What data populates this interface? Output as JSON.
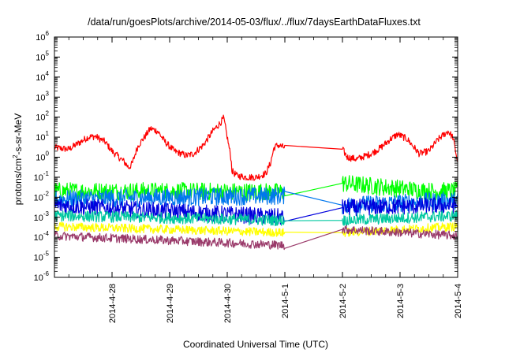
{
  "chart_data": {
    "type": "line",
    "title": "/data/run/goesPlots/archive/2014-05-03/flux/../flux/7daysEarthDataFluxes.txt",
    "xlabel": "Coordinated Universal Time (UTC)",
    "ylabel": "protons/cm2-s-sr-MeV",
    "ylabel_parts": {
      "pre": "protons/cm",
      "sup": "2",
      "post": "-s-sr-MeV"
    },
    "yscale": "log",
    "ylim": [
      1e-06,
      1000000.0
    ],
    "y_ticks": [
      {
        "base": "10",
        "exp": "-6",
        "value": 1e-06
      },
      {
        "base": "10",
        "exp": "-5",
        "value": 1e-05
      },
      {
        "base": "10",
        "exp": "-4",
        "value": 0.0001
      },
      {
        "base": "10",
        "exp": "-3",
        "value": 0.001
      },
      {
        "base": "10",
        "exp": "-2",
        "value": 0.01
      },
      {
        "base": "10",
        "exp": "-1",
        "value": 0.1
      },
      {
        "base": "10",
        "exp": "0",
        "value": 1
      },
      {
        "base": "10",
        "exp": "1",
        "value": 10
      },
      {
        "base": "10",
        "exp": "2",
        "value": 100
      },
      {
        "base": "10",
        "exp": "3",
        "value": 1000
      },
      {
        "base": "10",
        "exp": "4",
        "value": 10000
      },
      {
        "base": "10",
        "exp": "5",
        "value": 100000
      },
      {
        "base": "10",
        "exp": "6",
        "value": 1000000
      }
    ],
    "x_start": "2014-04-27 00:00",
    "xlim": [
      "2014-04-27 00:00",
      "2014-05-04 00:00"
    ],
    "x_ticks": [
      "2014-4-28",
      "2014-4-29",
      "2014-4-30",
      "2014-5-1",
      "2014-5-2",
      "2014-5-3",
      "2014-5-4"
    ],
    "data_gap": [
      "2014-05-01 00:00",
      "2014-05-02 00:00"
    ],
    "grid": false,
    "legend": "none",
    "series": [
      {
        "color": "#ff0000",
        "noise": 0.17,
        "points": [
          [
            "2014-04-27 00:00",
            3
          ],
          [
            "2014-04-27 06:00",
            2.5
          ],
          [
            "2014-04-27 10:00",
            5
          ],
          [
            "2014-04-27 14:00",
            10
          ],
          [
            "2014-04-27 17:00",
            11
          ],
          [
            "2014-04-27 21:00",
            6
          ],
          [
            "2014-04-28 00:00",
            2
          ],
          [
            "2014-04-28 05:00",
            0.6
          ],
          [
            "2014-04-28 07:00",
            0.3
          ],
          [
            "2014-04-28 08:30",
            0.5
          ],
          [
            "2014-04-28 10:00",
            2
          ],
          [
            "2014-04-28 11:00",
            4
          ],
          [
            "2014-04-28 14:00",
            12
          ],
          [
            "2014-04-28 16:00",
            27
          ],
          [
            "2014-04-28 19:00",
            20
          ],
          [
            "2014-04-28 22:00",
            6
          ],
          [
            "2014-04-29 02:00",
            2
          ],
          [
            "2014-04-29 07:00",
            1.2
          ],
          [
            "2014-04-29 10:00",
            1.5
          ],
          [
            "2014-04-29 14:00",
            4
          ],
          [
            "2014-04-29 18:00",
            20
          ],
          [
            "2014-04-29 21:00",
            50
          ],
          [
            "2014-04-29 22:30",
            90
          ],
          [
            "2014-04-30 00:00",
            10
          ],
          [
            "2014-04-30 01:30",
            1
          ],
          [
            "2014-04-30 02:00",
            0.2
          ],
          [
            "2014-04-30 04:00",
            0.12
          ],
          [
            "2014-04-30 08:00",
            0.1
          ],
          [
            "2014-04-30 12:00",
            0.1
          ],
          [
            "2014-04-30 16:00",
            0.15
          ],
          [
            "2014-04-30 18:00",
            0.5
          ],
          [
            "2014-04-30 19:30",
            3
          ],
          [
            "2014-04-30 21:00",
            4
          ],
          [
            "2014-04-30 23:59",
            3
          ],
          [
            "2014-05-02 00:00",
            2.5
          ],
          [
            "2014-05-02 02:00",
            1
          ],
          [
            "2014-05-02 06:00",
            0.8
          ],
          [
            "2014-05-02 12:00",
            1.5
          ],
          [
            "2014-05-02 16:00",
            3
          ],
          [
            "2014-05-02 20:00",
            8
          ],
          [
            "2014-05-02 23:00",
            14
          ],
          [
            "2014-05-03 03:00",
            8
          ],
          [
            "2014-05-03 08:00",
            1.5
          ],
          [
            "2014-05-03 12:00",
            2
          ],
          [
            "2014-05-03 16:00",
            8
          ],
          [
            "2014-05-03 20:00",
            20
          ],
          [
            "2014-05-03 22:00",
            10
          ],
          [
            "2014-05-04 00:00",
            0.6
          ]
        ]
      },
      {
        "color": "#00ff00",
        "noise": 0.45,
        "points": [
          [
            "2014-04-27 00:00",
            0.02
          ],
          [
            "2014-04-29 00:00",
            0.02
          ],
          [
            "2014-04-30 23:59",
            0.018
          ],
          [
            "2014-05-02 00:00",
            0.05
          ],
          [
            "2014-05-03 12:00",
            0.02
          ],
          [
            "2014-05-04 00:00",
            0.02
          ]
        ]
      },
      {
        "color": "#0077ee",
        "noise": 0.45,
        "points": [
          [
            "2014-04-27 00:00",
            0.008
          ],
          [
            "2014-04-30 23:59",
            0.012
          ],
          [
            "2014-05-02 00:00",
            0.004
          ],
          [
            "2014-05-04 00:00",
            0.007
          ]
        ]
      },
      {
        "color": "#0000dd",
        "noise": 0.42,
        "points": [
          [
            "2014-04-27 00:00",
            0.004
          ],
          [
            "2014-04-30 23:59",
            0.001
          ],
          [
            "2014-05-02 00:00",
            0.003
          ],
          [
            "2014-05-04 00:00",
            0.004
          ]
        ]
      },
      {
        "color": "#00c8a0",
        "noise": 0.28,
        "points": [
          [
            "2014-04-27 00:00",
            0.0012
          ],
          [
            "2014-04-30 23:59",
            0.0007
          ],
          [
            "2014-05-02 00:00",
            0.0007
          ],
          [
            "2014-05-04 00:00",
            0.0012
          ]
        ]
      },
      {
        "color": "#ffff00",
        "noise": 0.22,
        "points": [
          [
            "2014-04-27 00:00",
            0.00035
          ],
          [
            "2014-04-30 23:59",
            0.00017
          ],
          [
            "2014-05-02 00:00",
            0.00017
          ],
          [
            "2014-05-04 00:00",
            0.00035
          ]
        ]
      },
      {
        "color": "#9a3a6a",
        "noise": 0.22,
        "points": [
          [
            "2014-04-27 00:00",
            0.00012
          ],
          [
            "2014-04-30 23:59",
            4e-05
          ],
          [
            "2014-05-02 00:00",
            0.00025
          ],
          [
            "2014-05-04 00:00",
            0.00012
          ]
        ]
      }
    ]
  }
}
